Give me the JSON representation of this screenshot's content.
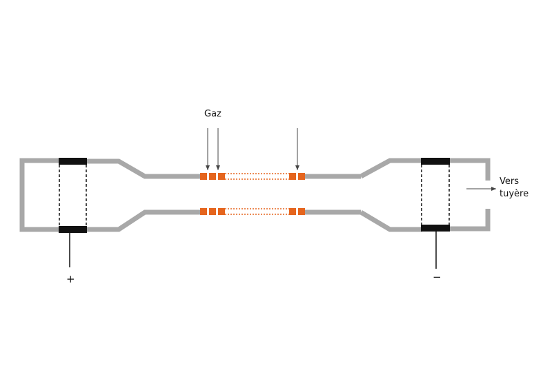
{
  "labels": {
    "gas": "Gaz",
    "outlet_line1": "Vers",
    "outlet_line2": "tuyère",
    "positive": "+",
    "negative": "−"
  },
  "colors": {
    "wall": "#a8a8a8",
    "electrode": "#111111",
    "insulator": "#e5651e",
    "arrow": "#444444"
  }
}
